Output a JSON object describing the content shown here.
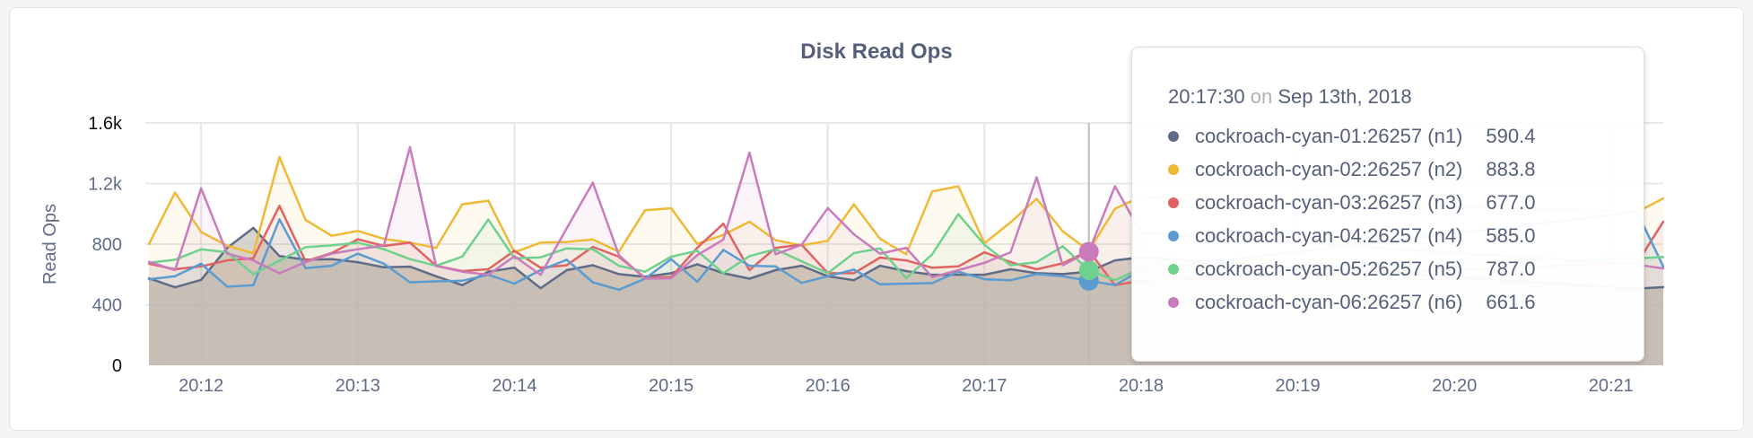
{
  "chart_data": {
    "type": "area",
    "title": "Disk Read Ops",
    "ylabel": "Read Ops",
    "xlabel": "",
    "ylim": [
      0,
      1600
    ],
    "y_ticks": [
      "0",
      "400",
      "800",
      "1.2k",
      "1.6k"
    ],
    "y_tick_values": [
      0,
      400,
      800,
      1200,
      1600
    ],
    "x_ticks": [
      "20:12",
      "20:13",
      "20:14",
      "20:15",
      "20:16",
      "20:17",
      "20:18",
      "20:19",
      "20:20",
      "20:21"
    ],
    "x_start": "20:11:40",
    "x_end": "20:21:20",
    "x_step_seconds": 10,
    "grid": true,
    "series": [
      {
        "name": "cockroach-cyan-01:26257 (n1)",
        "color": "#5f6c87",
        "values": [
          574,
          515,
          564,
          776,
          907,
          721,
          697,
          701,
          681,
          647,
          651,
          588,
          529,
          618,
          645,
          509,
          628,
          661,
          602,
          584,
          608,
          667,
          608,
          572,
          628,
          657,
          588,
          562,
          657,
          622,
          598,
          598,
          598,
          634,
          608,
          602,
          618,
          693,
          713,
          null,
          null,
          null,
          null,
          null,
          null,
          null,
          null,
          null,
          null,
          null,
          null,
          null,
          null,
          null,
          null,
          null,
          null,
          506,
          516
        ]
      },
      {
        "name": "cockroach-cyan-02:26257 (n2)",
        "color": "#efb936",
        "values": [
          800,
          1140,
          880,
          790,
          740,
          1375,
          960,
          855,
          887,
          835,
          810,
          775,
          1063,
          1087,
          746,
          810,
          814,
          830,
          750,
          1024,
          1037,
          802,
          861,
          948,
          826,
          792,
          822,
          1063,
          836,
          733,
          1148,
          1182,
          806,
          944,
          1099,
          885,
          756,
          1034,
          1113,
          null,
          null,
          null,
          null,
          null,
          null,
          null,
          null,
          null,
          null,
          null,
          null,
          null,
          null,
          null,
          null,
          null,
          null,
          1012,
          1102
        ]
      },
      {
        "name": "cockroach-cyan-03:26257 (n3)",
        "color": "#e06363",
        "values": [
          671,
          634,
          653,
          693,
          707,
          1053,
          687,
          741,
          832,
          788,
          810,
          657,
          622,
          634,
          756,
          644,
          661,
          782,
          717,
          578,
          582,
          776,
          935,
          628,
          776,
          796,
          608,
          608,
          711,
          693,
          644,
          653,
          746,
          681,
          634,
          673,
          756,
          529,
          558,
          null,
          null,
          null,
          null,
          null,
          null,
          null,
          null,
          null,
          null,
          null,
          null,
          null,
          null,
          null,
          null,
          null,
          null,
          675,
          949
        ]
      },
      {
        "name": "cockroach-cyan-04:26257 (n4)",
        "color": "#5b9bd0",
        "values": [
          568,
          588,
          671,
          519,
          529,
          964,
          642,
          657,
          737,
          671,
          548,
          554,
          558,
          598,
          539,
          628,
          697,
          548,
          499,
          572,
          701,
          552,
          762,
          657,
          653,
          544,
          588,
          632,
          535,
          539,
          543,
          618,
          568,
          562,
          602,
          588,
          558,
          529,
          628,
          null,
          null,
          null,
          null,
          null,
          null,
          null,
          null,
          null,
          null,
          null,
          null,
          null,
          null,
          null,
          null,
          null,
          null,
          1012,
          651
        ]
      },
      {
        "name": "cockroach-cyan-05:26257 (n5)",
        "color": "#6fd18d",
        "values": [
          677,
          697,
          766,
          746,
          602,
          691,
          780,
          792,
          810,
          766,
          701,
          657,
          717,
          962,
          707,
          713,
          772,
          766,
          657,
          618,
          717,
          756,
          608,
          721,
          766,
          687,
          608,
          741,
          772,
          574,
          733,
          998,
          796,
          661,
          681,
          786,
          628,
          562,
          638,
          null,
          null,
          null,
          null,
          null,
          null,
          null,
          null,
          null,
          null,
          null,
          null,
          null,
          null,
          null,
          null,
          null,
          null,
          705,
          715
        ]
      },
      {
        "name": "cockroach-cyan-06:26257 (n6)",
        "color": "#c97bbd",
        "values": [
          683,
          628,
          1168,
          737,
          693,
          608,
          681,
          737,
          766,
          792,
          1440,
          657,
          618,
          598,
          720,
          598,
          905,
          1206,
          727,
          572,
          574,
          727,
          830,
          1404,
          733,
          796,
          1038,
          865,
          737,
          776,
          582,
          628,
          677,
          746,
          1241,
          661,
          750,
          1182,
          875,
          null,
          null,
          null,
          null,
          null,
          null,
          null,
          null,
          null,
          null,
          null,
          null,
          null,
          null,
          null,
          null,
          null,
          null,
          665,
          639
        ]
      }
    ]
  },
  "tooltip": {
    "time": "20:17:30",
    "on": "on",
    "date": "Sep 13th, 2018",
    "rows": [
      {
        "name": "cockroach-cyan-01:26257 (n1)",
        "value": "590.4",
        "color": "#5f6c87"
      },
      {
        "name": "cockroach-cyan-02:26257 (n2)",
        "value": "883.8",
        "color": "#efb936"
      },
      {
        "name": "cockroach-cyan-03:26257 (n3)",
        "value": "677.0",
        "color": "#e06363"
      },
      {
        "name": "cockroach-cyan-04:26257 (n4)",
        "value": "585.0",
        "color": "#5b9bd0"
      },
      {
        "name": "cockroach-cyan-05:26257 (n5)",
        "value": "787.0",
        "color": "#6fd18d"
      },
      {
        "name": "cockroach-cyan-06:26257 (n6)",
        "value": "661.6",
        "color": "#c97bbd"
      }
    ]
  }
}
